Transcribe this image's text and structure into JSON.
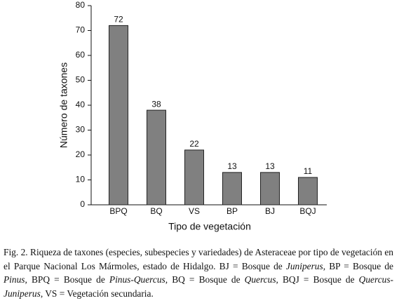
{
  "chart_data": {
    "type": "bar",
    "categories": [
      "BPQ",
      "BQ",
      "VS",
      "BP",
      "BJ",
      "BQJ"
    ],
    "values": [
      72,
      38,
      22,
      13,
      13,
      11
    ],
    "color": "#808080",
    "ylim": [
      0,
      80
    ],
    "yticks": [
      0,
      10,
      20,
      30,
      40,
      50,
      60,
      70,
      80
    ],
    "grid": false,
    "x_label": "Tipo de vegetación",
    "y_label": "Número de taxones"
  },
  "caption": {
    "segments": [
      {
        "text": "Fig. 2. Riqueza de taxones (especies, subespecies y variedades) de Asteraceae por tipo de vegetación en el Parque Nacional Los Mármoles, estado de Hidalgo. BJ = Bosque de ",
        "italic": false
      },
      {
        "text": "Juniperus",
        "italic": true
      },
      {
        "text": ", BP = Bosque de ",
        "italic": false
      },
      {
        "text": "Pinus",
        "italic": true
      },
      {
        "text": ", BPQ = Bosque de ",
        "italic": false
      },
      {
        "text": "Pinus-Quercus",
        "italic": true
      },
      {
        "text": ", BQ = Bosque de ",
        "italic": false
      },
      {
        "text": "Quercus",
        "italic": true
      },
      {
        "text": ", BQJ = Bosque de ",
        "italic": false
      },
      {
        "text": "Quercus-Juniperus",
        "italic": true
      },
      {
        "text": ", VS = Vegetación secundaria.",
        "italic": false
      }
    ]
  }
}
